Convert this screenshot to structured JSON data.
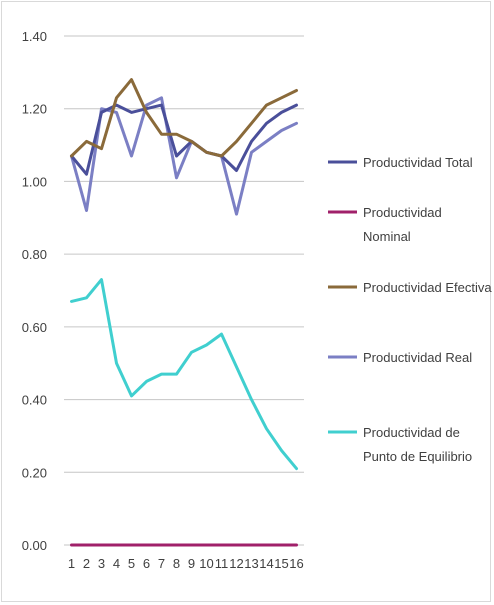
{
  "chart_data": {
    "type": "line",
    "title": "",
    "xlabel": "",
    "ylabel": "",
    "categories": [
      "1",
      "2",
      "3",
      "4",
      "5",
      "6",
      "7",
      "8",
      "9",
      "10",
      "11",
      "12",
      "13",
      "14",
      "15",
      "16"
    ],
    "y_ticks": [
      "0.00",
      "0.20",
      "0.40",
      "0.60",
      "0.80",
      "1.00",
      "1.20",
      "1.40"
    ],
    "ylim": [
      0,
      1.4
    ],
    "grid": true,
    "legend_position": "right",
    "series": [
      {
        "name": "Productividad Total",
        "legend_lines": [
          "Productividad Total"
        ],
        "color": "#4a4f9a",
        "values": [
          1.07,
          1.02,
          1.19,
          1.21,
          1.19,
          1.2,
          1.21,
          1.07,
          1.11,
          1.08,
          1.07,
          1.03,
          1.11,
          1.16,
          1.19,
          1.21
        ]
      },
      {
        "name": "Productividad Nominal",
        "legend_lines": [
          "Productividad",
          "Nominal"
        ],
        "color": "#a0206a",
        "values": [
          0.0,
          0.0,
          0.0,
          0.0,
          0.0,
          0.0,
          0.0,
          0.0,
          0.0,
          0.0,
          0.0,
          0.0,
          0.0,
          0.0,
          0.0,
          0.0
        ]
      },
      {
        "name": "Productividad Efectiva",
        "legend_lines": [
          "Productividad Efectiva"
        ],
        "color": "#8a6a3a",
        "values": [
          1.07,
          1.11,
          1.09,
          1.23,
          1.28,
          1.19,
          1.13,
          1.13,
          1.11,
          1.08,
          1.07,
          1.11,
          1.16,
          1.21,
          1.23,
          1.25
        ]
      },
      {
        "name": "Productividad Real",
        "legend_lines": [
          "Productividad Real"
        ],
        "color": "#7b7fc4",
        "values": [
          1.07,
          0.92,
          1.2,
          1.19,
          1.07,
          1.21,
          1.23,
          1.01,
          1.11,
          1.08,
          1.07,
          0.91,
          1.08,
          1.11,
          1.14,
          1.16
        ]
      },
      {
        "name": "Productividad de Punto de Equilibrio",
        "legend_lines": [
          "Productividad de",
          "Punto de Equilibrio"
        ],
        "color": "#40cfcf",
        "values": [
          0.67,
          0.68,
          0.73,
          0.5,
          0.41,
          0.45,
          0.47,
          0.47,
          0.53,
          0.55,
          0.58,
          0.49,
          0.4,
          0.32,
          0.26,
          0.21
        ]
      }
    ]
  }
}
